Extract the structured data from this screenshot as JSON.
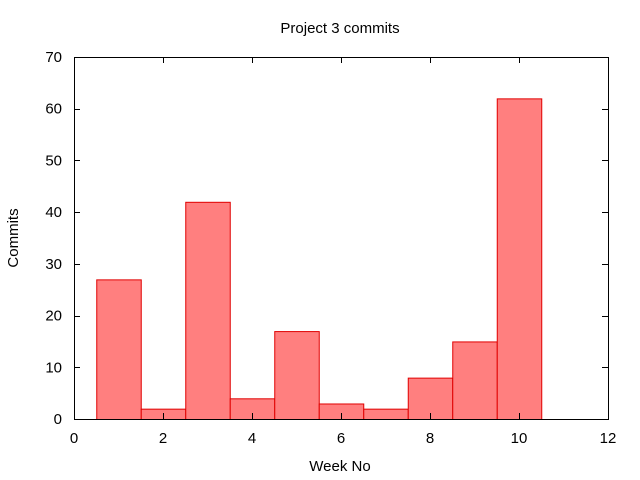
{
  "chart_data": {
    "type": "bar",
    "title": "Project 3 commits",
    "xlabel": "Week No",
    "ylabel": "Commits",
    "x": [
      1,
      2,
      3,
      4,
      5,
      6,
      7,
      8,
      9,
      10
    ],
    "values": [
      27,
      2,
      42,
      4,
      17,
      3,
      2,
      8,
      15,
      62
    ],
    "bar_width": 1,
    "xlim": [
      0,
      12
    ],
    "ylim": [
      0,
      70
    ],
    "xticks": [
      0,
      2,
      4,
      6,
      8,
      10,
      12
    ],
    "yticks": [
      0,
      10,
      20,
      30,
      40,
      50,
      60,
      70
    ],
    "grid": false,
    "legend": "none",
    "colors": {
      "bar_fill": "#ff7f7f",
      "bar_stroke": "#e00000",
      "axis": "#000000"
    }
  }
}
